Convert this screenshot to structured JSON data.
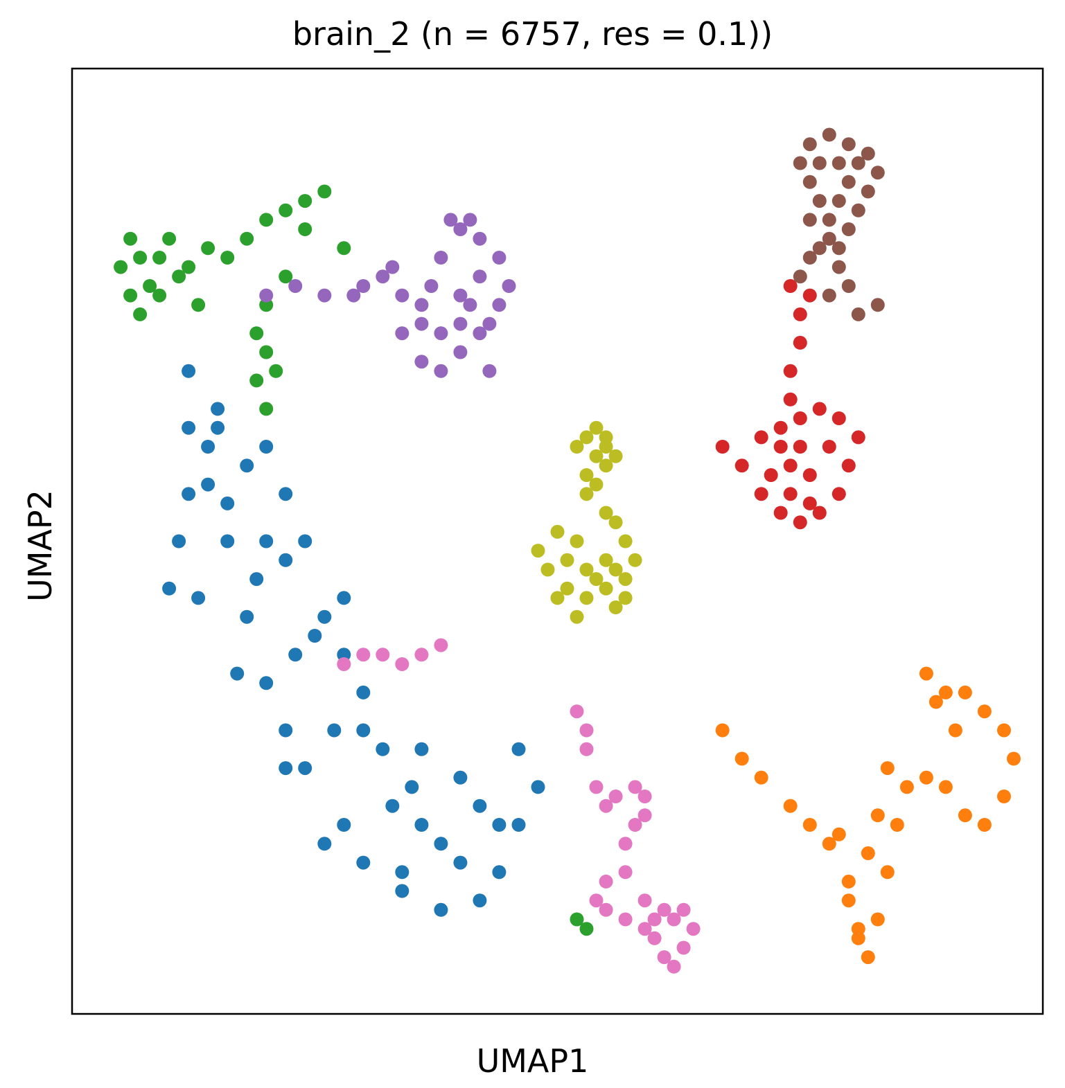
{
  "chart_data": {
    "type": "scatter",
    "title": "brain_2 (n = 6757, res = 0.1))",
    "xlabel": "UMAP1",
    "ylabel": "UMAP2",
    "xlim": [
      0,
      100
    ],
    "ylim": [
      0,
      100
    ],
    "xticks": [],
    "yticks": [],
    "grid": false,
    "legend": "none",
    "series": [
      {
        "color": "#1f77b4",
        "points": [
          [
            10,
            45
          ],
          [
            12,
            55
          ],
          [
            14,
            60
          ],
          [
            16,
            50
          ],
          [
            18,
            42
          ],
          [
            20,
            35
          ],
          [
            22,
            30
          ],
          [
            24,
            26
          ],
          [
            28,
            20
          ],
          [
            30,
            16
          ],
          [
            34,
            13
          ],
          [
            38,
            11
          ],
          [
            42,
            12
          ],
          [
            44,
            15
          ],
          [
            46,
            20
          ],
          [
            48,
            24
          ],
          [
            46,
            28
          ],
          [
            40,
            25
          ],
          [
            36,
            20
          ],
          [
            30,
            30
          ],
          [
            25,
            40
          ],
          [
            20,
            50
          ],
          [
            15,
            62
          ],
          [
            12,
            68
          ],
          [
            15,
            64
          ],
          [
            20,
            60
          ],
          [
            24,
            50
          ],
          [
            28,
            38
          ],
          [
            32,
            28
          ],
          [
            38,
            18
          ],
          [
            42,
            22
          ],
          [
            36,
            28
          ],
          [
            28,
            44
          ],
          [
            22,
            55
          ],
          [
            14,
            56
          ],
          [
            11,
            50
          ],
          [
            13,
            44
          ],
          [
            17,
            36
          ],
          [
            22,
            26
          ],
          [
            26,
            18
          ],
          [
            34,
            15
          ],
          [
            40,
            16
          ],
          [
            44,
            20
          ],
          [
            33,
            22
          ],
          [
            27,
            30
          ],
          [
            23,
            38
          ],
          [
            19,
            46
          ],
          [
            16,
            54
          ],
          [
            12,
            62
          ],
          [
            18,
            58
          ],
          [
            22,
            48
          ],
          [
            26,
            42
          ],
          [
            30,
            34
          ],
          [
            35,
            24
          ]
        ]
      },
      {
        "color": "#ff7f0e",
        "points": [
          [
            67,
            30
          ],
          [
            69,
            27
          ],
          [
            71,
            25
          ],
          [
            74,
            22
          ],
          [
            76,
            20
          ],
          [
            78,
            18
          ],
          [
            80,
            12
          ],
          [
            81,
            8
          ],
          [
            82,
            6
          ],
          [
            83,
            10
          ],
          [
            84,
            15
          ],
          [
            85,
            20
          ],
          [
            86,
            24
          ],
          [
            88,
            25
          ],
          [
            90,
            24
          ],
          [
            92,
            21
          ],
          [
            94,
            20
          ],
          [
            96,
            23
          ],
          [
            97,
            27
          ],
          [
            96,
            30
          ],
          [
            94,
            32
          ],
          [
            91,
            30
          ],
          [
            89,
            33
          ],
          [
            88,
            36
          ],
          [
            90,
            34
          ],
          [
            92,
            34
          ],
          [
            82,
            17
          ],
          [
            80,
            14
          ],
          [
            81,
            9
          ],
          [
            83,
            21
          ],
          [
            84,
            26
          ],
          [
            79,
            19
          ]
        ]
      },
      {
        "color": "#2ca02c",
        "points": [
          [
            5,
            79
          ],
          [
            6,
            76
          ],
          [
            7,
            74
          ],
          [
            8,
            77
          ],
          [
            9,
            80
          ],
          [
            10,
            82
          ],
          [
            12,
            79
          ],
          [
            14,
            81
          ],
          [
            16,
            80
          ],
          [
            18,
            82
          ],
          [
            20,
            84
          ],
          [
            22,
            85
          ],
          [
            24,
            86
          ],
          [
            26,
            87
          ],
          [
            22,
            78
          ],
          [
            20,
            75
          ],
          [
            19,
            72
          ],
          [
            20,
            70
          ],
          [
            19,
            67
          ],
          [
            21,
            68
          ],
          [
            20,
            64
          ],
          [
            7,
            80
          ],
          [
            9,
            76
          ],
          [
            11,
            78
          ],
          [
            13,
            75
          ],
          [
            24,
            83
          ],
          [
            6,
            82
          ],
          [
            28,
            81
          ],
          [
            52,
            10
          ],
          [
            53,
            9
          ]
        ]
      },
      {
        "color": "#d62728",
        "points": [
          [
            67,
            60
          ],
          [
            69,
            58
          ],
          [
            71,
            55
          ],
          [
            73,
            53
          ],
          [
            75,
            52
          ],
          [
            77,
            53
          ],
          [
            79,
            55
          ],
          [
            80,
            58
          ],
          [
            81,
            61
          ],
          [
            79,
            63
          ],
          [
            77,
            64
          ],
          [
            75,
            63
          ],
          [
            73,
            62
          ],
          [
            71,
            61
          ],
          [
            74,
            58
          ],
          [
            76,
            57
          ],
          [
            78,
            60
          ],
          [
            72,
            57
          ],
          [
            74,
            55
          ],
          [
            76,
            54
          ],
          [
            75,
            60
          ],
          [
            73,
            60
          ],
          [
            74,
            65
          ],
          [
            74,
            68
          ],
          [
            75,
            71
          ],
          [
            75,
            74
          ],
          [
            76,
            76
          ],
          [
            74,
            77
          ]
        ]
      },
      {
        "color": "#9467bd",
        "points": [
          [
            20,
            76
          ],
          [
            23,
            77
          ],
          [
            26,
            76
          ],
          [
            29,
            76
          ],
          [
            32,
            78
          ],
          [
            34,
            76
          ],
          [
            34,
            72
          ],
          [
            36,
            69
          ],
          [
            38,
            68
          ],
          [
            40,
            70
          ],
          [
            42,
            72
          ],
          [
            44,
            75
          ],
          [
            45,
            77
          ],
          [
            44,
            80
          ],
          [
            42,
            82
          ],
          [
            40,
            83
          ],
          [
            38,
            80
          ],
          [
            37,
            77
          ],
          [
            36,
            73
          ],
          [
            40,
            76
          ],
          [
            42,
            78
          ],
          [
            41,
            84
          ],
          [
            39,
            84
          ],
          [
            33,
            79
          ],
          [
            30,
            77
          ],
          [
            41,
            75
          ],
          [
            43,
            73
          ],
          [
            38,
            72
          ],
          [
            40,
            73
          ],
          [
            36,
            75
          ],
          [
            43,
            68
          ]
        ]
      },
      {
        "color": "#8c564b",
        "points": [
          [
            75,
            78
          ],
          [
            76,
            80
          ],
          [
            77,
            81
          ],
          [
            78,
            82
          ],
          [
            80,
            83
          ],
          [
            81,
            85
          ],
          [
            82,
            87
          ],
          [
            83,
            89
          ],
          [
            82,
            91
          ],
          [
            80,
            92
          ],
          [
            78,
            93
          ],
          [
            76,
            92
          ],
          [
            75,
            90
          ],
          [
            76,
            88
          ],
          [
            77,
            86
          ],
          [
            78,
            84
          ],
          [
            79,
            86
          ],
          [
            80,
            88
          ],
          [
            81,
            90
          ],
          [
            79,
            90
          ],
          [
            77,
            90
          ],
          [
            76,
            84
          ],
          [
            79,
            81
          ],
          [
            80,
            77
          ],
          [
            81,
            74
          ],
          [
            83,
            75
          ],
          [
            78,
            76
          ],
          [
            79,
            79
          ]
        ]
      },
      {
        "color": "#e377c2",
        "points": [
          [
            28,
            37
          ],
          [
            30,
            38
          ],
          [
            32,
            38
          ],
          [
            34,
            37
          ],
          [
            36,
            38
          ],
          [
            38,
            39
          ],
          [
            52,
            32
          ],
          [
            53,
            28
          ],
          [
            54,
            24
          ],
          [
            55,
            22
          ],
          [
            56,
            23
          ],
          [
            58,
            24
          ],
          [
            59,
            23
          ],
          [
            58,
            20
          ],
          [
            57,
            18
          ],
          [
            57,
            15
          ],
          [
            55,
            14
          ],
          [
            54,
            12
          ],
          [
            55,
            11
          ],
          [
            57,
            10
          ],
          [
            59,
            9
          ],
          [
            60,
            8
          ],
          [
            61,
            6
          ],
          [
            62,
            5
          ],
          [
            63,
            7
          ],
          [
            64,
            9
          ],
          [
            63,
            11
          ],
          [
            61,
            11
          ],
          [
            59,
            12
          ],
          [
            60,
            10
          ],
          [
            62,
            10
          ],
          [
            53,
            30
          ],
          [
            59,
            21
          ]
        ]
      },
      {
        "color": "#bcbd22",
        "points": [
          [
            52,
            60
          ],
          [
            53,
            61
          ],
          [
            54,
            62
          ],
          [
            55,
            61
          ],
          [
            56,
            59
          ],
          [
            55,
            58
          ],
          [
            53,
            57
          ],
          [
            54,
            59
          ],
          [
            55,
            60
          ],
          [
            54,
            56
          ],
          [
            53,
            55
          ],
          [
            55,
            53
          ],
          [
            56,
            52
          ],
          [
            57,
            50
          ],
          [
            58,
            48
          ],
          [
            57,
            46
          ],
          [
            55,
            45
          ],
          [
            53,
            44
          ],
          [
            51,
            45
          ],
          [
            49,
            47
          ],
          [
            48,
            49
          ],
          [
            50,
            51
          ],
          [
            52,
            50
          ],
          [
            51,
            48
          ],
          [
            53,
            47
          ],
          [
            55,
            48
          ],
          [
            56,
            47
          ],
          [
            57,
            44
          ],
          [
            56,
            43
          ],
          [
            54,
            46
          ],
          [
            52,
            42
          ],
          [
            50,
            44
          ]
        ]
      }
    ]
  }
}
